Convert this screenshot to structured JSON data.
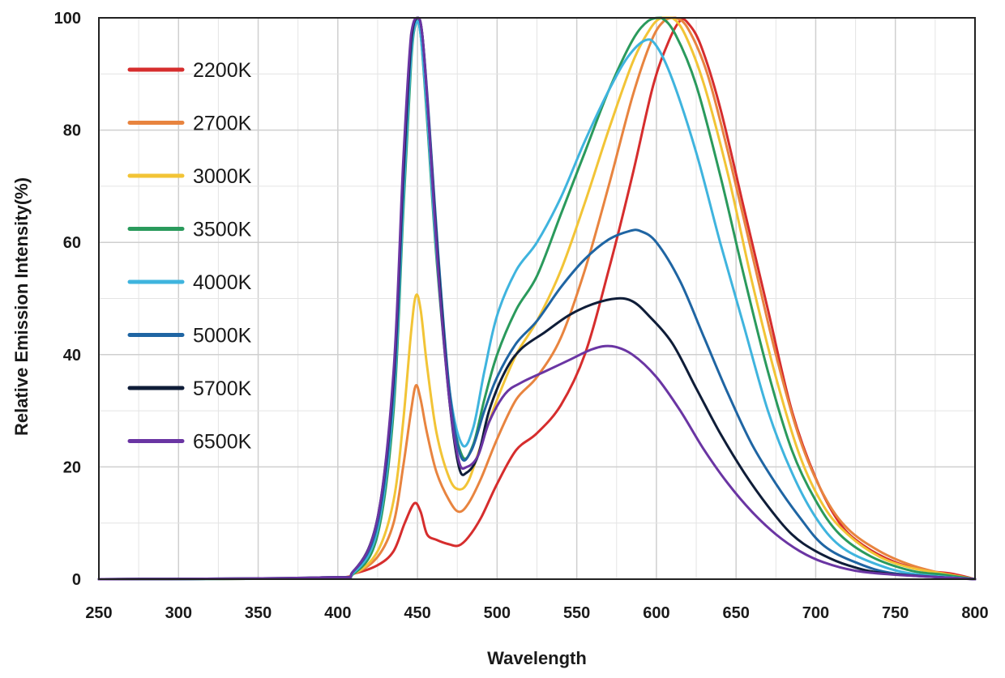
{
  "chart_data": {
    "type": "line",
    "xlabel": "Wavelength",
    "ylabel": "Relative Emission Intensity(%)",
    "xlim": [
      250,
      800
    ],
    "ylim": [
      0,
      100
    ],
    "x_ticks": [
      250,
      300,
      350,
      400,
      450,
      500,
      550,
      600,
      650,
      700,
      750,
      800
    ],
    "y_ticks": [
      0,
      20,
      40,
      60,
      80,
      100
    ],
    "grid": true,
    "legend_position": "top-left",
    "series": [
      {
        "name": "2200K",
        "color": "#d62d2d",
        "points": [
          [
            250,
            0
          ],
          [
            390,
            0.2
          ],
          [
            410,
            1
          ],
          [
            425,
            2.5
          ],
          [
            435,
            5
          ],
          [
            442,
            10
          ],
          [
            448,
            13.5
          ],
          [
            452,
            12
          ],
          [
            456,
            8
          ],
          [
            462,
            7
          ],
          [
            470,
            6.2
          ],
          [
            476,
            6
          ],
          [
            482,
            7.5
          ],
          [
            490,
            11
          ],
          [
            500,
            17
          ],
          [
            512,
            23
          ],
          [
            525,
            26
          ],
          [
            540,
            31
          ],
          [
            555,
            40
          ],
          [
            570,
            55
          ],
          [
            585,
            72
          ],
          [
            598,
            88
          ],
          [
            608,
            96
          ],
          [
            615,
            99.5
          ],
          [
            620,
            99
          ],
          [
            628,
            95
          ],
          [
            640,
            84
          ],
          [
            655,
            66
          ],
          [
            670,
            48
          ],
          [
            685,
            30
          ],
          [
            700,
            18
          ],
          [
            715,
            10
          ],
          [
            730,
            6
          ],
          [
            750,
            3
          ],
          [
            770,
            1.5
          ],
          [
            785,
            1
          ],
          [
            800,
            0
          ]
        ]
      },
      {
        "name": "2700K",
        "color": "#e8843f",
        "points": [
          [
            250,
            0
          ],
          [
            390,
            0.2
          ],
          [
            410,
            1
          ],
          [
            425,
            4
          ],
          [
            435,
            10
          ],
          [
            441,
            20
          ],
          [
            446,
            30
          ],
          [
            449,
            34.5
          ],
          [
            452,
            32
          ],
          [
            456,
            26
          ],
          [
            462,
            19
          ],
          [
            470,
            14
          ],
          [
            476,
            12
          ],
          [
            482,
            13.5
          ],
          [
            490,
            18
          ],
          [
            500,
            25
          ],
          [
            512,
            32
          ],
          [
            525,
            36
          ],
          [
            540,
            43
          ],
          [
            555,
            55
          ],
          [
            570,
            70
          ],
          [
            585,
            86
          ],
          [
            597,
            96
          ],
          [
            605,
            99.5
          ],
          [
            612,
            100
          ],
          [
            620,
            98
          ],
          [
            632,
            90
          ],
          [
            645,
            76
          ],
          [
            660,
            58
          ],
          [
            675,
            40
          ],
          [
            690,
            25
          ],
          [
            705,
            15
          ],
          [
            720,
            9
          ],
          [
            740,
            5
          ],
          [
            760,
            2.5
          ],
          [
            780,
            1
          ],
          [
            800,
            0
          ]
        ]
      },
      {
        "name": "3000K",
        "color": "#f2c436",
        "points": [
          [
            250,
            0
          ],
          [
            390,
            0.2
          ],
          [
            410,
            1
          ],
          [
            425,
            5
          ],
          [
            435,
            14
          ],
          [
            441,
            28
          ],
          [
            446,
            44
          ],
          [
            449,
            50.5
          ],
          [
            452,
            48
          ],
          [
            456,
            38
          ],
          [
            462,
            26
          ],
          [
            470,
            18
          ],
          [
            476,
            16
          ],
          [
            482,
            17.5
          ],
          [
            490,
            24
          ],
          [
            500,
            32
          ],
          [
            512,
            40
          ],
          [
            525,
            46
          ],
          [
            540,
            55
          ],
          [
            555,
            67
          ],
          [
            570,
            80
          ],
          [
            585,
            92
          ],
          [
            596,
            98
          ],
          [
            603,
            100
          ],
          [
            610,
            100
          ],
          [
            618,
            97
          ],
          [
            630,
            88
          ],
          [
            645,
            72
          ],
          [
            660,
            53
          ],
          [
            675,
            36
          ],
          [
            690,
            22
          ],
          [
            705,
            13
          ],
          [
            720,
            8
          ],
          [
            740,
            4
          ],
          [
            760,
            2
          ],
          [
            780,
            1
          ],
          [
            800,
            0
          ]
        ]
      },
      {
        "name": "3500K",
        "color": "#2a9a5c",
        "points": [
          [
            250,
            0
          ],
          [
            390,
            0.2
          ],
          [
            410,
            1
          ],
          [
            425,
            8
          ],
          [
            435,
            30
          ],
          [
            441,
            65
          ],
          [
            446,
            92
          ],
          [
            449,
            99
          ],
          [
            452,
            97
          ],
          [
            456,
            82
          ],
          [
            462,
            57
          ],
          [
            470,
            33
          ],
          [
            478,
            22
          ],
          [
            485,
            24
          ],
          [
            492,
            32
          ],
          [
            500,
            40
          ],
          [
            512,
            48
          ],
          [
            525,
            54
          ],
          [
            540,
            65
          ],
          [
            555,
            76
          ],
          [
            570,
            87
          ],
          [
            585,
            96
          ],
          [
            595,
            99.5
          ],
          [
            603,
            100
          ],
          [
            612,
            97
          ],
          [
            625,
            88
          ],
          [
            640,
            72
          ],
          [
            655,
            54
          ],
          [
            670,
            37
          ],
          [
            685,
            23
          ],
          [
            700,
            14
          ],
          [
            715,
            8
          ],
          [
            735,
            4
          ],
          [
            760,
            1.5
          ],
          [
            780,
            0.8
          ],
          [
            800,
            0
          ]
        ]
      },
      {
        "name": "4000K",
        "color": "#3fb4de",
        "points": [
          [
            250,
            0
          ],
          [
            390,
            0.2
          ],
          [
            410,
            1.2
          ],
          [
            425,
            9
          ],
          [
            435,
            32
          ],
          [
            441,
            67
          ],
          [
            446,
            93
          ],
          [
            449,
            99
          ],
          [
            452,
            97
          ],
          [
            456,
            83
          ],
          [
            462,
            58
          ],
          [
            470,
            34
          ],
          [
            478,
            24
          ],
          [
            485,
            27
          ],
          [
            492,
            37
          ],
          [
            500,
            47
          ],
          [
            512,
            55
          ],
          [
            525,
            60
          ],
          [
            540,
            68
          ],
          [
            555,
            78
          ],
          [
            570,
            87
          ],
          [
            582,
            93
          ],
          [
            593,
            96
          ],
          [
            600,
            95
          ],
          [
            610,
            89
          ],
          [
            625,
            76
          ],
          [
            640,
            60
          ],
          [
            655,
            45
          ],
          [
            670,
            30
          ],
          [
            685,
            19
          ],
          [
            700,
            11
          ],
          [
            715,
            6
          ],
          [
            735,
            3
          ],
          [
            760,
            1
          ],
          [
            800,
            0
          ]
        ]
      },
      {
        "name": "5000K",
        "color": "#1f65a3",
        "points": [
          [
            250,
            0
          ],
          [
            390,
            0.3
          ],
          [
            410,
            1.5
          ],
          [
            425,
            10
          ],
          [
            435,
            34
          ],
          [
            441,
            70
          ],
          [
            446,
            95
          ],
          [
            450,
            100
          ],
          [
            453,
            97
          ],
          [
            457,
            83
          ],
          [
            463,
            58
          ],
          [
            470,
            34
          ],
          [
            477,
            22
          ],
          [
            484,
            23
          ],
          [
            492,
            30
          ],
          [
            500,
            36
          ],
          [
            512,
            42
          ],
          [
            525,
            46
          ],
          [
            540,
            52
          ],
          [
            555,
            57
          ],
          [
            570,
            60.5
          ],
          [
            583,
            62
          ],
          [
            590,
            62
          ],
          [
            600,
            60
          ],
          [
            615,
            53
          ],
          [
            630,
            43
          ],
          [
            645,
            33
          ],
          [
            660,
            24
          ],
          [
            675,
            17
          ],
          [
            690,
            11
          ],
          [
            705,
            6
          ],
          [
            725,
            3
          ],
          [
            750,
            1
          ],
          [
            800,
            0
          ]
        ]
      },
      {
        "name": "5700K",
        "color": "#0f1d38",
        "points": [
          [
            250,
            0
          ],
          [
            390,
            0.3
          ],
          [
            410,
            1.5
          ],
          [
            425,
            11
          ],
          [
            435,
            36
          ],
          [
            441,
            72
          ],
          [
            446,
            96
          ],
          [
            450,
            100
          ],
          [
            453,
            97
          ],
          [
            457,
            82
          ],
          [
            463,
            56
          ],
          [
            470,
            32
          ],
          [
            476,
            20
          ],
          [
            481,
            19
          ],
          [
            488,
            22
          ],
          [
            495,
            30
          ],
          [
            505,
            37
          ],
          [
            515,
            41
          ],
          [
            530,
            44
          ],
          [
            545,
            47
          ],
          [
            560,
            49
          ],
          [
            575,
            50
          ],
          [
            585,
            49.5
          ],
          [
            595,
            47
          ],
          [
            610,
            42
          ],
          [
            625,
            34
          ],
          [
            640,
            26
          ],
          [
            655,
            19
          ],
          [
            670,
            13
          ],
          [
            685,
            8
          ],
          [
            700,
            5
          ],
          [
            720,
            2.5
          ],
          [
            745,
            1
          ],
          [
            800,
            0
          ]
        ]
      },
      {
        "name": "6500K",
        "color": "#6a35a3",
        "points": [
          [
            250,
            0
          ],
          [
            390,
            0.3
          ],
          [
            410,
            1.5
          ],
          [
            425,
            11
          ],
          [
            435,
            37
          ],
          [
            441,
            74
          ],
          [
            446,
            97
          ],
          [
            450,
            100
          ],
          [
            453,
            97
          ],
          [
            457,
            82
          ],
          [
            463,
            55
          ],
          [
            470,
            32
          ],
          [
            476,
            21
          ],
          [
            481,
            20
          ],
          [
            488,
            22
          ],
          [
            495,
            28
          ],
          [
            505,
            33
          ],
          [
            515,
            35
          ],
          [
            530,
            37
          ],
          [
            545,
            39
          ],
          [
            560,
            41
          ],
          [
            572,
            41.5
          ],
          [
            585,
            40
          ],
          [
            600,
            36
          ],
          [
            615,
            30
          ],
          [
            630,
            23
          ],
          [
            645,
            17
          ],
          [
            660,
            12
          ],
          [
            675,
            8
          ],
          [
            690,
            5
          ],
          [
            705,
            3
          ],
          [
            725,
            1.5
          ],
          [
            750,
            0.8
          ],
          [
            800,
            0
          ]
        ]
      }
    ]
  }
}
